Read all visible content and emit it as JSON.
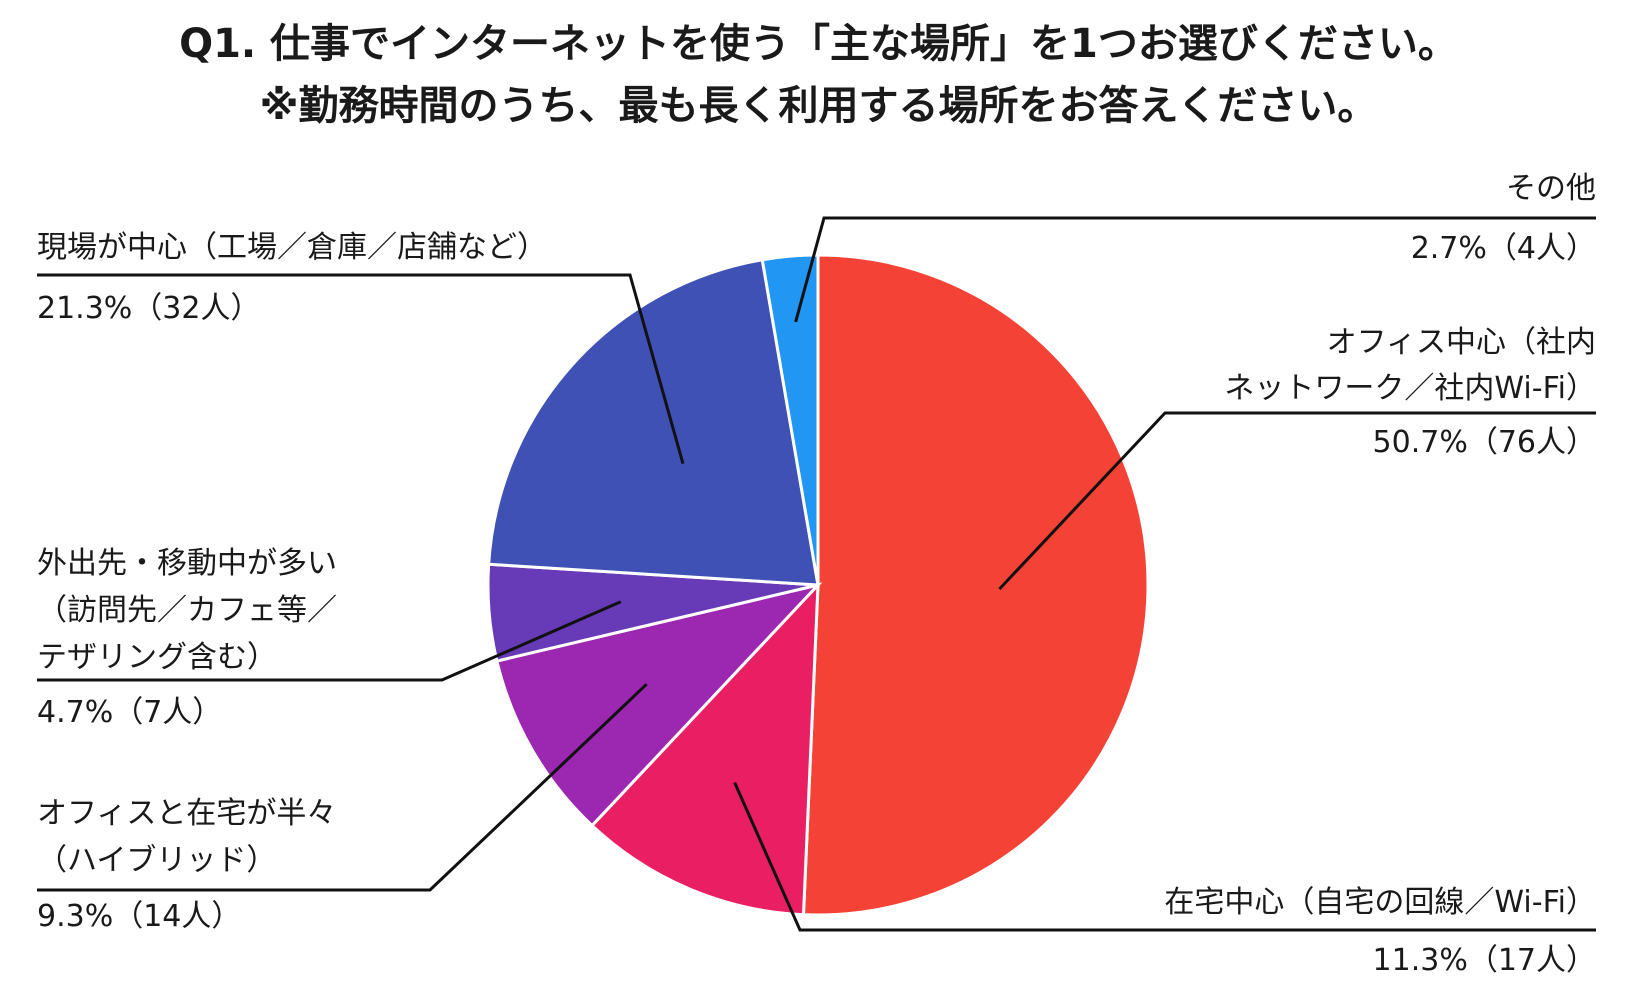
{
  "title_line1": "Q1. 仕事でインターネットを使う「主な場所」を1つお選びください。",
  "title_line2": "※勤務時間のうち、最も長く利用する場所をお答えください。",
  "chart_data": {
    "type": "pie",
    "title": "Q1. 仕事でインターネットを使う「主な場所」を1つお選びください。 ※勤務時間のうち、最も長く利用する場所をお答えください。",
    "slices": [
      {
        "name": "オフィス中心（社内ネットワーク／社内Wi-Fi）",
        "label_lines": [
          "オフィス中心（社内",
          "ネットワーク／社内Wi-Fi）"
        ],
        "value_label": "50.7%（76人）",
        "percent": 50.7,
        "count": 76,
        "color": "#F44336"
      },
      {
        "name": "在宅中心（自宅の回線／Wi-Fi）",
        "label_lines": [
          "在宅中心（自宅の回線／Wi-Fi）"
        ],
        "value_label": "11.3%（17人）",
        "percent": 11.3,
        "count": 17,
        "color": "#E91E63"
      },
      {
        "name": "オフィスと在宅が半々（ハイブリッド）",
        "label_lines": [
          "オフィスと在宅が半々",
          "（ハイブリッド）"
        ],
        "value_label": "9.3%（14人）",
        "percent": 9.3,
        "count": 14,
        "color": "#9C27B0"
      },
      {
        "name": "外出先・移動中が多い（訪問先／カフェ等／テザリング含む）",
        "label_lines": [
          "外出先・移動中が多い",
          "（訪問先／カフェ等／",
          "テザリング含む）"
        ],
        "value_label": "4.7%（7人）",
        "percent": 4.7,
        "count": 7,
        "color": "#673AB7"
      },
      {
        "name": "現場が中心（工場／倉庫／店舗など）",
        "label_lines": [
          "現場が中心（工場／倉庫／店舗など）"
        ],
        "value_label": "21.3%（32人）",
        "percent": 21.3,
        "count": 32,
        "color": "#3F51B5"
      },
      {
        "name": "その他",
        "label_lines": [
          "その他"
        ],
        "value_label": "2.7%（4人）",
        "percent": 2.7,
        "count": 4,
        "color": "#2196F3"
      }
    ],
    "start": "12 o'clock",
    "direction": "clockwise",
    "legend": "none"
  }
}
